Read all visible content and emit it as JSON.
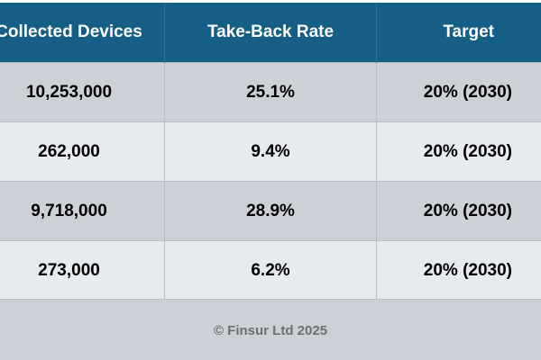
{
  "table": {
    "headers": [
      "Collected Devices",
      "Take-Back Rate",
      "Target"
    ],
    "rows": [
      [
        "10,253,000",
        "25.1%",
        "20% (2030)"
      ],
      [
        "262,000",
        "9.4%",
        "20% (2030)"
      ],
      [
        "9,718,000",
        "28.9%",
        "20% (2030)"
      ],
      [
        "273,000",
        "6.2%",
        "20% (2030)"
      ]
    ]
  },
  "footer": {
    "text": "© Finsur Ltd 2025"
  }
}
